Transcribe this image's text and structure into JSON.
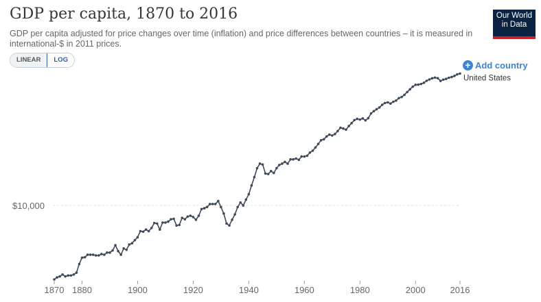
{
  "header": {
    "title": "GDP per capita, 1870 to 2016",
    "subtitle": "GDP per capita adjusted for price changes over time (inflation) and price differences between countries – it is measured in international-$ in 2011 prices.",
    "logo_line1": "Our World",
    "logo_line2": "in Data"
  },
  "controls": {
    "linear_label": "LINEAR",
    "log_label": "LOG",
    "add_country_label": "Add country",
    "add_icon": "plus-circle-icon"
  },
  "colors": {
    "line": "#3e4a5c",
    "accent": "#3a84d4",
    "logo_bg": "#0b2342",
    "logo_stripe": "#c8202e"
  },
  "chart_data": {
    "type": "line",
    "title": "GDP per capita, 1870 to 2016",
    "xlabel": "",
    "ylabel": "",
    "y_scale": "log",
    "grid": "horizontal dashed at labeled tick",
    "legend": "end-of-line label",
    "x_ticks": [
      1870,
      1880,
      1900,
      1920,
      1940,
      1960,
      1980,
      2000,
      2016
    ],
    "y_ticks": [
      10000
    ],
    "y_tick_labels": [
      "$10,000"
    ],
    "xlim": [
      1870,
      2016
    ],
    "ylim": [
      3800,
      56000
    ],
    "series": [
      {
        "name": "United States",
        "x": [
          1870,
          1871,
          1872,
          1873,
          1874,
          1875,
          1876,
          1877,
          1878,
          1879,
          1880,
          1881,
          1882,
          1883,
          1884,
          1885,
          1886,
          1887,
          1888,
          1889,
          1890,
          1891,
          1892,
          1893,
          1894,
          1895,
          1896,
          1897,
          1898,
          1899,
          1900,
          1901,
          1902,
          1903,
          1904,
          1905,
          1906,
          1907,
          1908,
          1909,
          1910,
          1911,
          1912,
          1913,
          1914,
          1915,
          1916,
          1917,
          1918,
          1919,
          1920,
          1921,
          1922,
          1923,
          1924,
          1925,
          1926,
          1927,
          1928,
          1929,
          1930,
          1931,
          1932,
          1933,
          1934,
          1935,
          1936,
          1937,
          1938,
          1939,
          1940,
          1941,
          1942,
          1943,
          1944,
          1945,
          1946,
          1947,
          1948,
          1949,
          1950,
          1951,
          1952,
          1953,
          1954,
          1955,
          1956,
          1957,
          1958,
          1959,
          1960,
          1961,
          1962,
          1963,
          1964,
          1965,
          1966,
          1967,
          1968,
          1969,
          1970,
          1971,
          1972,
          1973,
          1974,
          1975,
          1976,
          1977,
          1978,
          1979,
          1980,
          1981,
          1982,
          1983,
          1984,
          1985,
          1986,
          1987,
          1988,
          1989,
          1990,
          1991,
          1992,
          1993,
          1994,
          1995,
          1996,
          1997,
          1998,
          1999,
          2000,
          2001,
          2002,
          2003,
          2004,
          2005,
          2006,
          2007,
          2008,
          2009,
          2010,
          2011,
          2012,
          2013,
          2014,
          2015,
          2016
        ],
        "y": [
          3800,
          3900,
          3950,
          4050,
          3950,
          4000,
          4000,
          4050,
          4150,
          4650,
          5050,
          5080,
          5250,
          5250,
          5250,
          5200,
          5200,
          5300,
          5250,
          5400,
          5400,
          5550,
          5950,
          5500,
          5250,
          5700,
          5600,
          6000,
          6100,
          6350,
          6600,
          7150,
          7100,
          7300,
          7150,
          7450,
          7950,
          7900,
          7300,
          8000,
          8000,
          8100,
          8350,
          8400,
          7700,
          7750,
          8500,
          8350,
          8650,
          8750,
          8600,
          8300,
          8750,
          9550,
          9650,
          9800,
          10200,
          10200,
          10200,
          10600,
          9800,
          9000,
          7900,
          7700,
          8300,
          8900,
          9800,
          10400,
          10000,
          10800,
          11600,
          13000,
          14500,
          16300,
          17300,
          17100,
          15200,
          15100,
          15700,
          15300,
          16300,
          17000,
          17300,
          17700,
          17300,
          18300,
          18300,
          18500,
          18200,
          19000,
          19000,
          19200,
          20000,
          20500,
          21400,
          22400,
          23500,
          23800,
          24700,
          25300,
          25000,
          25500,
          26500,
          27700,
          27400,
          27000,
          28300,
          29400,
          30600,
          31100,
          30800,
          31300,
          30500,
          31400,
          33400,
          34400,
          35300,
          36100,
          37400,
          38300,
          38600,
          38000,
          38900,
          39500,
          40800,
          41400,
          42600,
          44200,
          45800,
          47400,
          48600,
          48700,
          49100,
          49900,
          51200,
          52100,
          52900,
          53400,
          53000,
          51100,
          52000,
          52500,
          53300,
          53800,
          54600,
          55700,
          56300
        ]
      }
    ]
  }
}
